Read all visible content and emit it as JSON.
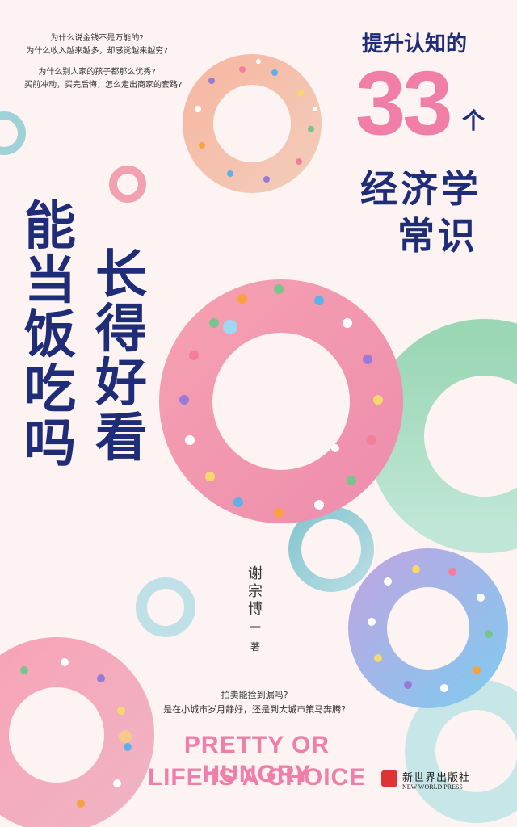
{
  "top_questions": [
    "为什么说金钱不是万能的?",
    "为什么收入越来越多，却感觉越来越穷?",
    "为什么别人家的孩子都那么优秀?",
    "买前冲动，买完后悔，怎么走出商家的套路?"
  ],
  "subtitle": {
    "line1": "提升认知的",
    "number": "33",
    "unit": "个",
    "line2": "经济学",
    "line3": "常识"
  },
  "title": {
    "col_left": "能当饭吃吗",
    "col_right": "长得好看"
  },
  "author": {
    "name": "谢宗博",
    "dash": "—",
    "role": "著"
  },
  "bottom_questions": [
    "拍卖能捡到漏吗?",
    "是在小城市岁月静好，还是到大城市策马奔腾?"
  ],
  "english_title": {
    "line1": "PRETTY OR HUNGRY",
    "line2": "LIFE IS A CHOICE"
  },
  "publisher": {
    "chinese": "新世界出版社",
    "english": "NEW WORLD PRESS"
  },
  "colors": {
    "title": "#1f2c78",
    "accent_pink": "#ef7ea8",
    "background": "#fcf3f2"
  }
}
